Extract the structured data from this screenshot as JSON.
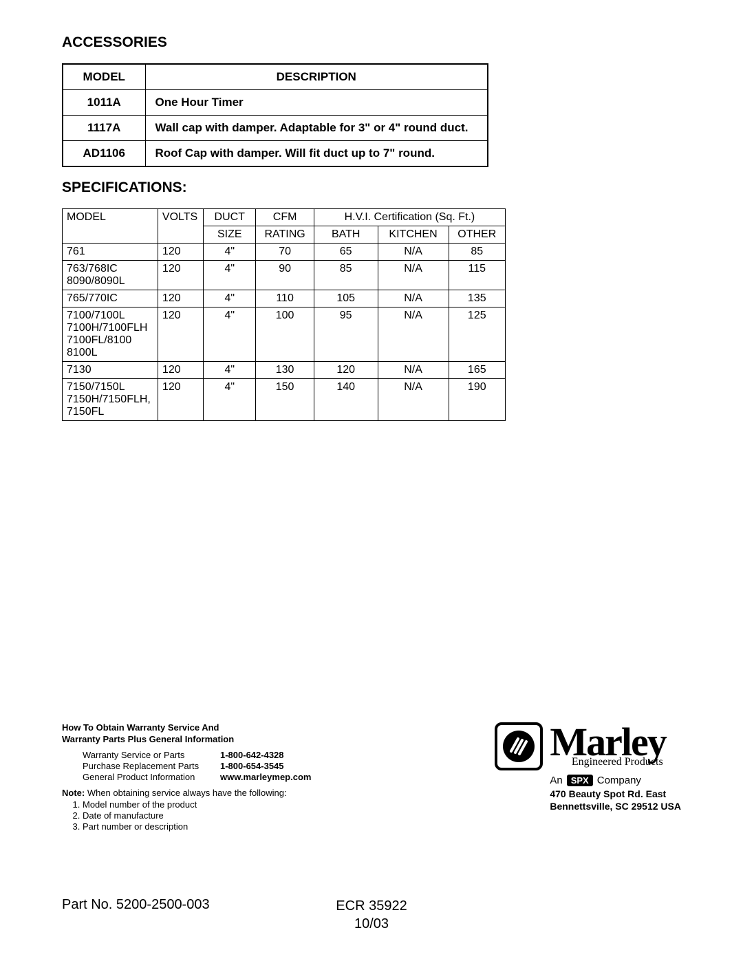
{
  "headings": {
    "accessories": "ACCESSORIES",
    "specifications": "SPECIFICATIONS:"
  },
  "accessories_table": {
    "columns": [
      "MODEL",
      "DESCRIPTION"
    ],
    "rows": [
      {
        "model": "1011A",
        "description": "One Hour Timer"
      },
      {
        "model": "1117A",
        "description": "Wall cap with damper. Adaptable for 3\" or 4\" round duct."
      },
      {
        "model": "AD1106",
        "description": "Roof Cap with damper. Will fit duct up to 7\" round."
      }
    ]
  },
  "spec_table": {
    "header_row1": {
      "model": "MODEL",
      "volts": "VOLTS",
      "duct": "DUCT",
      "cfm": "CFM",
      "hvi": "H.V.I. Certification (Sq. Ft.)"
    },
    "header_row2": {
      "duct": "SIZE",
      "cfm": "RATING",
      "bath": "BATH",
      "kitchen": "KITCHEN",
      "other": "OTHER"
    },
    "rows": [
      {
        "model": "761",
        "volts": "120",
        "duct": "4\"",
        "cfm": "70",
        "bath": "65",
        "kitchen": "N/A",
        "other": "85"
      },
      {
        "model": "763/768IC\n8090/8090L",
        "volts": "120",
        "duct": "4\"",
        "cfm": "90",
        "bath": "85",
        "kitchen": "N/A",
        "other": "115"
      },
      {
        "model": "765/770IC",
        "volts": "120",
        "duct": "4\"",
        "cfm": "110",
        "bath": "105",
        "kitchen": "N/A",
        "other": "135"
      },
      {
        "model": "7100/7100L\n7100H/7100FLH\n7100FL/8100\n8100L",
        "volts": "120",
        "duct": "4\"",
        "cfm": "100",
        "bath": "95",
        "kitchen": "N/A",
        "other": "125"
      },
      {
        "model": "7130",
        "volts": "120",
        "duct": "4\"",
        "cfm": "130",
        "bath": "120",
        "kitchen": "N/A",
        "other": "165"
      },
      {
        "model": "7150/7150L\n7150H/7150FLH,\n7150FL",
        "volts": "120",
        "duct": "4\"",
        "cfm": "150",
        "bath": "140",
        "kitchen": "N/A",
        "other": "190"
      }
    ]
  },
  "warranty": {
    "title_line1": "How To Obtain Warranty Service And",
    "title_line2": "Warranty Parts Plus General Information",
    "contacts": [
      {
        "label": "Warranty Service or Parts",
        "value": "1-800-642-4328"
      },
      {
        "label": "Purchase Replacement Parts",
        "value": "1-800-654-3545"
      },
      {
        "label": "General Product Information",
        "value": "www.marleymep.com"
      }
    ],
    "note_label": "Note:",
    "note_text": " When obtaining service always have the following:",
    "note_items": [
      "Model number of the product",
      "Date of manufacture",
      "Part number or description"
    ]
  },
  "company": {
    "logo_name": "Marley",
    "logo_sub": "Engineered Products",
    "an": "An",
    "spx": "SPX",
    "company": "Company",
    "addr1": "470 Beauty Spot Rd. East",
    "addr2": "Bennettsville, SC  29512 USA"
  },
  "footer": {
    "part_no": "Part No. 5200-2500-003",
    "ecr": "ECR 35922",
    "date": "10/03"
  }
}
